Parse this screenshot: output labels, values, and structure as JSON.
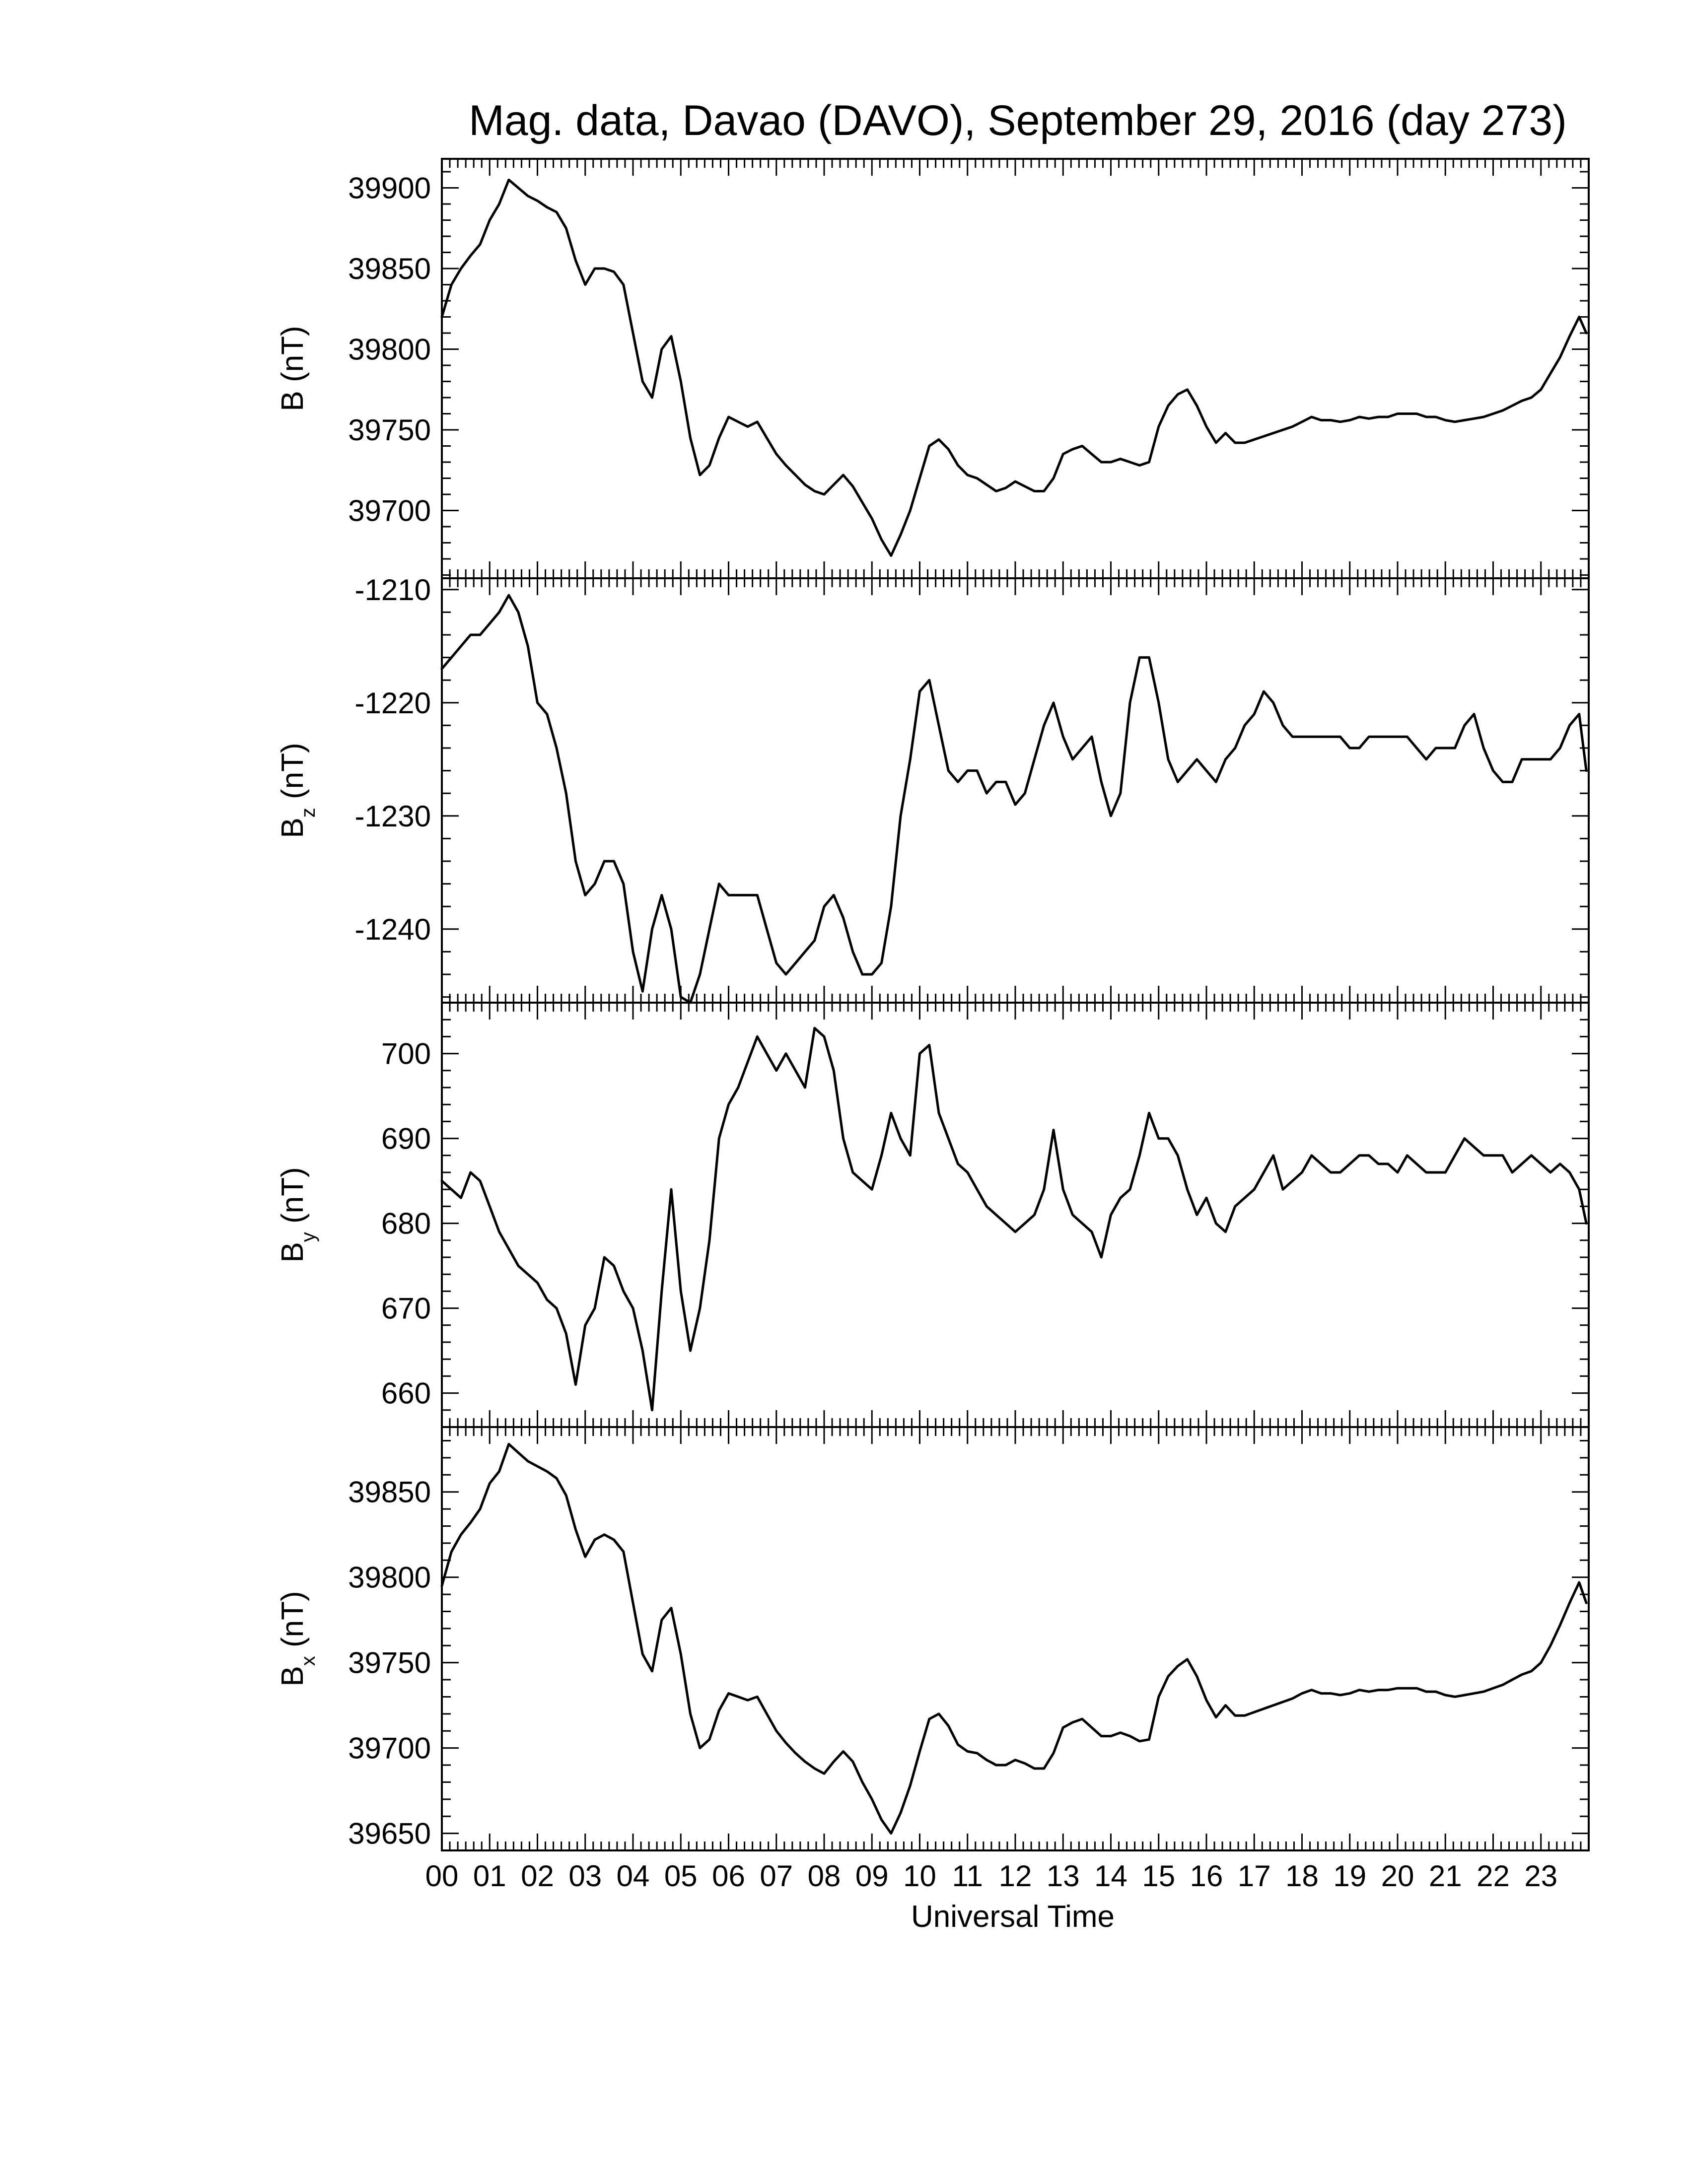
{
  "title": "Mag. data, Davao (DAVO), September 29, 2016 (day 273)",
  "xlabel": "Universal Time",
  "x_tick_labels": [
    "00",
    "01",
    "02",
    "03",
    "04",
    "05",
    "06",
    "07",
    "08",
    "09",
    "10",
    "11",
    "12",
    "13",
    "14",
    "15",
    "16",
    "17",
    "18",
    "19",
    "20",
    "21",
    "22",
    "23"
  ],
  "chart_data": [
    {
      "type": "line",
      "panel": "B",
      "ylabel": "B (nT)",
      "ylabel_base": "B",
      "ylabel_sub": "",
      "ylabel_unit": " (nT)",
      "xlim": [
        0,
        24
      ],
      "ylim": [
        39658,
        39918
      ],
      "yticks": [
        39700,
        39750,
        39800,
        39850,
        39900
      ],
      "ytick_labels": [
        "39700",
        "39750",
        "39800",
        "39850",
        "39900"
      ],
      "x": [
        0,
        0.2,
        0.4,
        0.6,
        0.8,
        1.0,
        1.2,
        1.4,
        1.6,
        1.8,
        2.0,
        2.2,
        2.4,
        2.6,
        2.8,
        3.0,
        3.2,
        3.4,
        3.6,
        3.8,
        4.0,
        4.2,
        4.4,
        4.6,
        4.8,
        5.0,
        5.2,
        5.4,
        5.6,
        5.8,
        6.0,
        6.2,
        6.4,
        6.6,
        6.8,
        7.0,
        7.2,
        7.4,
        7.6,
        7.8,
        8.0,
        8.2,
        8.4,
        8.6,
        8.8,
        9.0,
        9.2,
        9.4,
        9.6,
        9.8,
        10.0,
        10.2,
        10.4,
        10.6,
        10.8,
        11.0,
        11.2,
        11.4,
        11.6,
        11.8,
        12.0,
        12.2,
        12.4,
        12.6,
        12.8,
        13.0,
        13.2,
        13.4,
        13.6,
        13.8,
        14.0,
        14.2,
        14.4,
        14.6,
        14.8,
        15.0,
        15.2,
        15.4,
        15.6,
        15.8,
        16.0,
        16.2,
        16.4,
        16.6,
        16.8,
        17.0,
        17.2,
        17.4,
        17.6,
        17.8,
        18.0,
        18.2,
        18.4,
        18.6,
        18.8,
        19.0,
        19.2,
        19.4,
        19.6,
        19.8,
        20.0,
        20.2,
        20.4,
        20.6,
        20.8,
        21.0,
        21.2,
        21.4,
        21.6,
        21.8,
        22.0,
        22.2,
        22.4,
        22.6,
        22.8,
        23.0,
        23.2,
        23.4,
        23.6,
        23.8,
        23.95
      ],
      "values": [
        39820,
        39840,
        39850,
        39858,
        39865,
        39880,
        39890,
        39905,
        39900,
        39895,
        39892,
        39888,
        39885,
        39875,
        39855,
        39840,
        39850,
        39850,
        39848,
        39840,
        39810,
        39780,
        39770,
        39800,
        39808,
        39780,
        39745,
        39722,
        39728,
        39745,
        39758,
        39755,
        39752,
        39755,
        39745,
        39735,
        39728,
        39722,
        39716,
        39712,
        39710,
        39716,
        39722,
        39715,
        39705,
        39695,
        39682,
        39672,
        39685,
        39700,
        39720,
        39740,
        39744,
        39738,
        39728,
        39722,
        39720,
        39716,
        39712,
        39714,
        39718,
        39715,
        39712,
        39712,
        39720,
        39735,
        39738,
        39740,
        39735,
        39730,
        39730,
        39732,
        39730,
        39728,
        39730,
        39752,
        39765,
        39772,
        39775,
        39765,
        39752,
        39742,
        39748,
        39742,
        39742,
        39744,
        39746,
        39748,
        39750,
        39752,
        39755,
        39758,
        39756,
        39756,
        39755,
        39756,
        39758,
        39757,
        39758,
        39758,
        39760,
        39760,
        39760,
        39758,
        39758,
        39756,
        39755,
        39756,
        39757,
        39758,
        39760,
        39762,
        39765,
        39768,
        39770,
        39775,
        39785,
        39795,
        39808,
        39820,
        39810
      ]
    },
    {
      "type": "line",
      "panel": "Bz",
      "ylabel": "Bz (nT)",
      "ylabel_base": "B",
      "ylabel_sub": "z",
      "ylabel_unit": " (nT)",
      "xlim": [
        0,
        24
      ],
      "ylim": [
        -1246.5,
        -1209
      ],
      "yticks": [
        -1210,
        -1220,
        -1230,
        -1240
      ],
      "ytick_labels": [
        "-1210",
        "-1220",
        "-1230",
        "-1240"
      ],
      "x": [
        0,
        0.2,
        0.4,
        0.6,
        0.8,
        1.0,
        1.2,
        1.4,
        1.6,
        1.8,
        2.0,
        2.2,
        2.4,
        2.6,
        2.8,
        3.0,
        3.2,
        3.4,
        3.6,
        3.8,
        4.0,
        4.2,
        4.4,
        4.6,
        4.8,
        5.0,
        5.2,
        5.4,
        5.6,
        5.8,
        6.0,
        6.2,
        6.4,
        6.6,
        6.8,
        7.0,
        7.2,
        7.4,
        7.6,
        7.8,
        8.0,
        8.2,
        8.4,
        8.6,
        8.8,
        9.0,
        9.2,
        9.4,
        9.6,
        9.8,
        10.0,
        10.2,
        10.4,
        10.6,
        10.8,
        11.0,
        11.2,
        11.4,
        11.6,
        11.8,
        12.0,
        12.2,
        12.4,
        12.6,
        12.8,
        13.0,
        13.2,
        13.4,
        13.6,
        13.8,
        14.0,
        14.2,
        14.4,
        14.6,
        14.8,
        15.0,
        15.2,
        15.4,
        15.6,
        15.8,
        16.0,
        16.2,
        16.4,
        16.6,
        16.8,
        17.0,
        17.2,
        17.4,
        17.6,
        17.8,
        18.0,
        18.2,
        18.4,
        18.6,
        18.8,
        19.0,
        19.2,
        19.4,
        19.6,
        19.8,
        20.0,
        20.2,
        20.4,
        20.6,
        20.8,
        21.0,
        21.2,
        21.4,
        21.6,
        21.8,
        22.0,
        22.2,
        22.4,
        22.6,
        22.8,
        23.0,
        23.2,
        23.4,
        23.6,
        23.8,
        23.95
      ],
      "values": [
        -1217,
        -1216,
        -1215,
        -1214,
        -1214,
        -1213,
        -1212,
        -1210.5,
        -1212,
        -1215,
        -1220,
        -1221,
        -1224,
        -1228,
        -1234,
        -1237,
        -1236,
        -1234,
        -1234,
        -1236,
        -1242,
        -1245.5,
        -1240,
        -1237,
        -1240,
        -1246,
        -1246.5,
        -1244,
        -1240,
        -1236,
        -1237,
        -1237,
        -1237,
        -1237,
        -1240,
        -1243,
        -1244,
        -1243,
        -1242,
        -1241,
        -1238,
        -1237,
        -1239,
        -1242,
        -1244,
        -1244,
        -1243,
        -1238,
        -1230,
        -1225,
        -1219,
        -1218,
        -1222,
        -1226,
        -1227,
        -1226,
        -1226,
        -1228,
        -1227,
        -1227,
        -1229,
        -1228,
        -1225,
        -1222,
        -1220,
        -1223,
        -1225,
        -1224,
        -1223,
        -1227,
        -1230,
        -1228,
        -1220,
        -1216,
        -1216,
        -1220,
        -1225,
        -1227,
        -1226,
        -1225,
        -1226,
        -1227,
        -1225,
        -1224,
        -1222,
        -1221,
        -1219,
        -1220,
        -1222,
        -1223,
        -1223,
        -1223,
        -1223,
        -1223,
        -1223,
        -1224,
        -1224,
        -1223,
        -1223,
        -1223,
        -1223,
        -1223,
        -1224,
        -1225,
        -1224,
        -1224,
        -1224,
        -1222,
        -1221,
        -1224,
        -1226,
        -1227,
        -1227,
        -1225,
        -1225,
        -1225,
        -1225,
        -1224,
        -1222,
        -1221,
        -1226
      ]
    },
    {
      "type": "line",
      "panel": "By",
      "ylabel": "By (nT)",
      "ylabel_base": "B",
      "ylabel_sub": "y",
      "ylabel_unit": " (nT)",
      "xlim": [
        0,
        24
      ],
      "ylim": [
        656,
        706
      ],
      "yticks": [
        660,
        670,
        680,
        690,
        700
      ],
      "ytick_labels": [
        "660",
        "670",
        "680",
        "690",
        "700"
      ],
      "x": [
        0,
        0.2,
        0.4,
        0.6,
        0.8,
        1.0,
        1.2,
        1.4,
        1.6,
        1.8,
        2.0,
        2.2,
        2.4,
        2.6,
        2.8,
        3.0,
        3.2,
        3.4,
        3.6,
        3.8,
        4.0,
        4.2,
        4.4,
        4.6,
        4.8,
        5.0,
        5.2,
        5.4,
        5.6,
        5.8,
        6.0,
        6.2,
        6.4,
        6.6,
        6.8,
        7.0,
        7.2,
        7.4,
        7.6,
        7.8,
        8.0,
        8.2,
        8.4,
        8.6,
        8.8,
        9.0,
        9.2,
        9.4,
        9.6,
        9.8,
        10.0,
        10.2,
        10.4,
        10.6,
        10.8,
        11.0,
        11.2,
        11.4,
        11.6,
        11.8,
        12.0,
        12.2,
        12.4,
        12.6,
        12.8,
        13.0,
        13.2,
        13.4,
        13.6,
        13.8,
        14.0,
        14.2,
        14.4,
        14.6,
        14.8,
        15.0,
        15.2,
        15.4,
        15.6,
        15.8,
        16.0,
        16.2,
        16.4,
        16.6,
        16.8,
        17.0,
        17.2,
        17.4,
        17.6,
        17.8,
        18.0,
        18.2,
        18.4,
        18.6,
        18.8,
        19.0,
        19.2,
        19.4,
        19.6,
        19.8,
        20.0,
        20.2,
        20.4,
        20.6,
        20.8,
        21.0,
        21.2,
        21.4,
        21.6,
        21.8,
        22.0,
        22.2,
        22.4,
        22.6,
        22.8,
        23.0,
        23.2,
        23.4,
        23.6,
        23.8,
        23.95
      ],
      "values": [
        685,
        684,
        683,
        686,
        685,
        682,
        679,
        677,
        675,
        674,
        673,
        671,
        670,
        667,
        661,
        668,
        670,
        676,
        675,
        672,
        670,
        665,
        658,
        672,
        684,
        672,
        665,
        670,
        678,
        690,
        694,
        696,
        699,
        702,
        700,
        698,
        700,
        698,
        696,
        703,
        702,
        698,
        690,
        686,
        685,
        684,
        688,
        693,
        690,
        688,
        700,
        701,
        693,
        690,
        687,
        686,
        684,
        682,
        681,
        680,
        679,
        680,
        681,
        684,
        691,
        684,
        681,
        680,
        679,
        676,
        681,
        683,
        684,
        688,
        693,
        690,
        690,
        688,
        684,
        681,
        683,
        680,
        679,
        682,
        683,
        684,
        686,
        688,
        684,
        685,
        686,
        688,
        687,
        686,
        686,
        687,
        688,
        688,
        687,
        687,
        686,
        688,
        687,
        686,
        686,
        686,
        688,
        690,
        689,
        688,
        688,
        688,
        686,
        687,
        688,
        687,
        686,
        687,
        686,
        684,
        680
      ]
    },
    {
      "type": "line",
      "panel": "Bx",
      "ylabel": "Bx (nT)",
      "ylabel_base": "B",
      "ylabel_sub": "x",
      "ylabel_unit": " (nT)",
      "xlim": [
        0,
        24
      ],
      "ylim": [
        39640,
        39888
      ],
      "yticks": [
        39650,
        39700,
        39750,
        39800,
        39850
      ],
      "ytick_labels": [
        "39650",
        "39700",
        "39750",
        "39800",
        "39850"
      ],
      "x": [
        0,
        0.2,
        0.4,
        0.6,
        0.8,
        1.0,
        1.2,
        1.4,
        1.6,
        1.8,
        2.0,
        2.2,
        2.4,
        2.6,
        2.8,
        3.0,
        3.2,
        3.4,
        3.6,
        3.8,
        4.0,
        4.2,
        4.4,
        4.6,
        4.8,
        5.0,
        5.2,
        5.4,
        5.6,
        5.8,
        6.0,
        6.2,
        6.4,
        6.6,
        6.8,
        7.0,
        7.2,
        7.4,
        7.6,
        7.8,
        8.0,
        8.2,
        8.4,
        8.6,
        8.8,
        9.0,
        9.2,
        9.4,
        9.6,
        9.8,
        10.0,
        10.2,
        10.4,
        10.6,
        10.8,
        11.0,
        11.2,
        11.4,
        11.6,
        11.8,
        12.0,
        12.2,
        12.4,
        12.6,
        12.8,
        13.0,
        13.2,
        13.4,
        13.6,
        13.8,
        14.0,
        14.2,
        14.4,
        14.6,
        14.8,
        15.0,
        15.2,
        15.4,
        15.6,
        15.8,
        16.0,
        16.2,
        16.4,
        16.6,
        16.8,
        17.0,
        17.2,
        17.4,
        17.6,
        17.8,
        18.0,
        18.2,
        18.4,
        18.6,
        18.8,
        19.0,
        19.2,
        19.4,
        19.6,
        19.8,
        20.0,
        20.2,
        20.4,
        20.6,
        20.8,
        21.0,
        21.2,
        21.4,
        21.6,
        21.8,
        22.0,
        22.2,
        22.4,
        22.6,
        22.8,
        23.0,
        23.2,
        23.4,
        23.6,
        23.8,
        23.95
      ],
      "values": [
        39795,
        39815,
        39825,
        39832,
        39840,
        39855,
        39862,
        39878,
        39873,
        39868,
        39865,
        39862,
        39858,
        39848,
        39828,
        39812,
        39822,
        39825,
        39822,
        39815,
        39785,
        39755,
        39745,
        39775,
        39782,
        39755,
        39720,
        39700,
        39705,
        39722,
        39732,
        39730,
        39728,
        39730,
        39720,
        39710,
        39703,
        39697,
        39692,
        39688,
        39685,
        39692,
        39698,
        39692,
        39680,
        39670,
        39658,
        39650,
        39662,
        39678,
        39698,
        39717,
        39720,
        39713,
        39702,
        39698,
        39697,
        39693,
        39690,
        39690,
        39693,
        39691,
        39688,
        39688,
        39697,
        39712,
        39715,
        39717,
        39712,
        39707,
        39707,
        39709,
        39707,
        39704,
        39705,
        39730,
        39742,
        39748,
        39752,
        39742,
        39728,
        39718,
        39725,
        39719,
        39719,
        39721,
        39723,
        39725,
        39727,
        39729,
        39732,
        39734,
        39732,
        39732,
        39731,
        39732,
        39734,
        39733,
        39734,
        39734,
        39735,
        39735,
        39735,
        39733,
        39733,
        39731,
        39730,
        39731,
        39732,
        39733,
        39735,
        39737,
        39740,
        39743,
        39745,
        39750,
        39760,
        39772,
        39785,
        39797,
        39785
      ]
    }
  ]
}
